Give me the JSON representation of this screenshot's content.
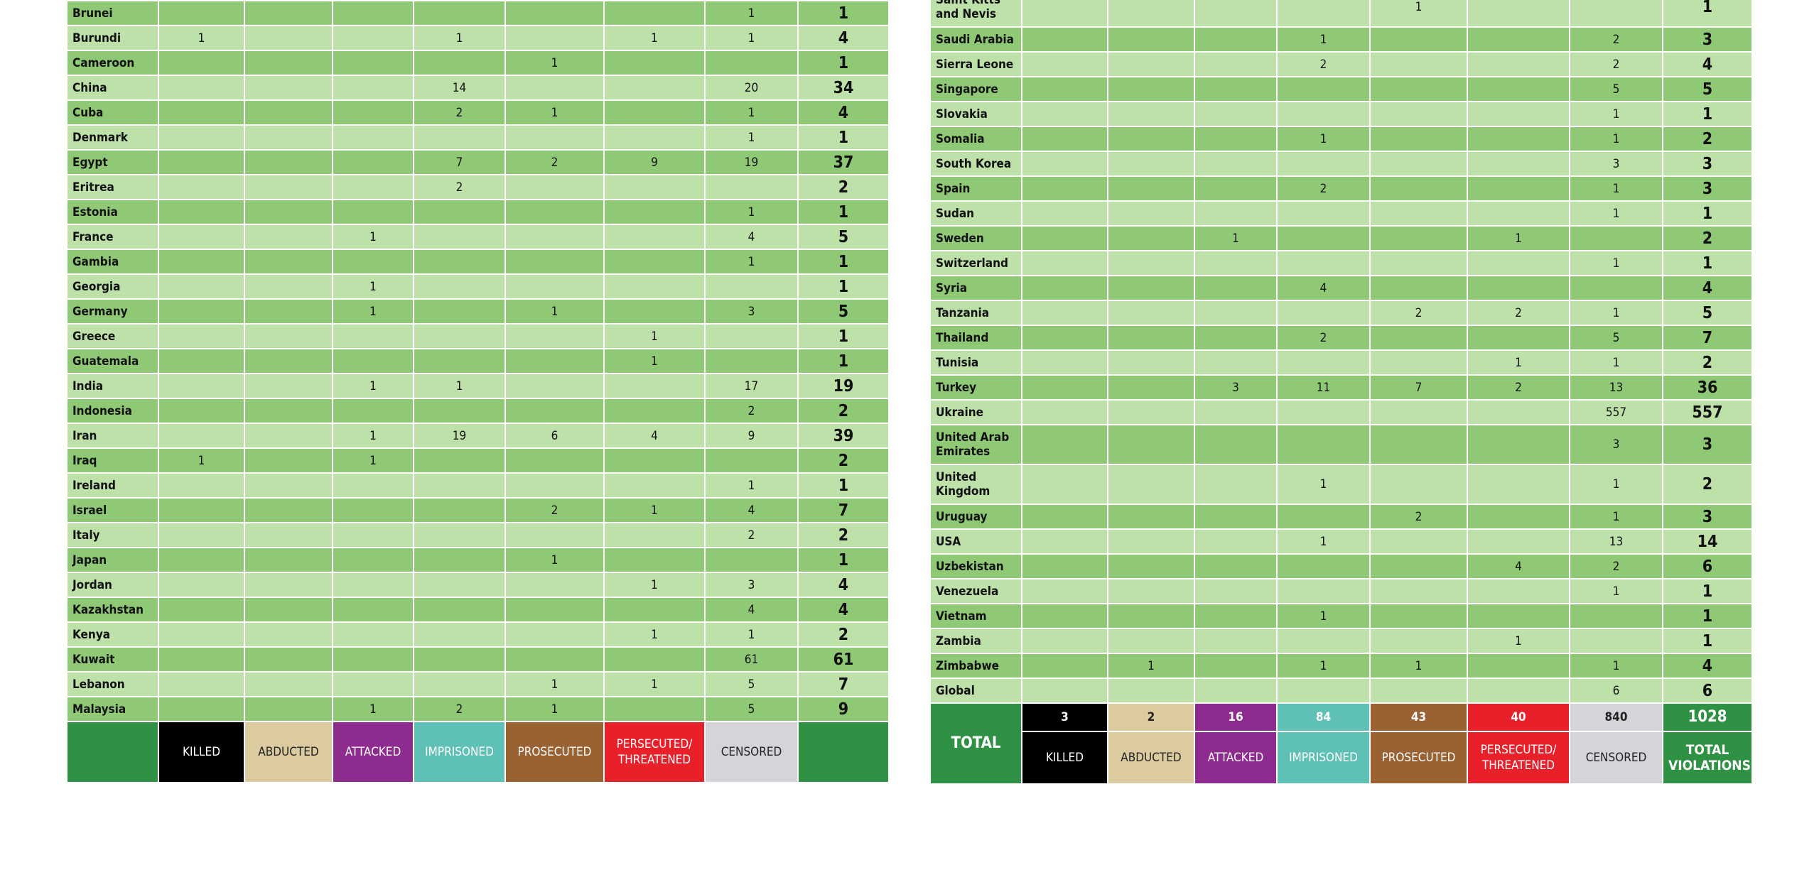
{
  "left": {
    "rows": [
      [
        "Brunei",
        null,
        null,
        null,
        null,
        null,
        null,
        1,
        1
      ],
      [
        "Burundi",
        1,
        null,
        null,
        1,
        null,
        1,
        1,
        4
      ],
      [
        "Cameroon",
        null,
        null,
        null,
        null,
        1,
        null,
        null,
        1
      ],
      [
        "China",
        null,
        null,
        null,
        14,
        null,
        null,
        20,
        34
      ],
      [
        "Cuba",
        null,
        null,
        null,
        2,
        1,
        null,
        1,
        4
      ],
      [
        "Denmark",
        null,
        null,
        null,
        null,
        null,
        null,
        1,
        1
      ],
      [
        "Egypt",
        null,
        null,
        null,
        7,
        2,
        9,
        19,
        37
      ],
      [
        "Eritrea",
        null,
        null,
        null,
        2,
        null,
        null,
        null,
        2
      ],
      [
        "Estonia",
        null,
        null,
        null,
        null,
        null,
        null,
        1,
        1
      ],
      [
        "France",
        null,
        null,
        1,
        null,
        null,
        null,
        4,
        5
      ],
      [
        "Gambia",
        null,
        null,
        null,
        null,
        null,
        null,
        1,
        1
      ],
      [
        "Georgia",
        null,
        null,
        1,
        null,
        null,
        null,
        null,
        1
      ],
      [
        "Germany",
        null,
        null,
        1,
        null,
        1,
        null,
        3,
        5
      ],
      [
        "Greece",
        null,
        null,
        null,
        null,
        null,
        1,
        null,
        1
      ],
      [
        "Guatemala",
        null,
        null,
        null,
        null,
        null,
        1,
        null,
        1
      ],
      [
        "India",
        null,
        null,
        1,
        1,
        null,
        null,
        17,
        19
      ],
      [
        "Indonesia",
        null,
        null,
        null,
        null,
        null,
        null,
        2,
        2
      ],
      [
        "Iran",
        null,
        null,
        1,
        19,
        6,
        4,
        9,
        39
      ],
      [
        "Iraq",
        1,
        null,
        1,
        null,
        null,
        null,
        null,
        2
      ],
      [
        "Ireland",
        null,
        null,
        null,
        null,
        null,
        null,
        1,
        1
      ],
      [
        "Israel",
        null,
        null,
        null,
        null,
        2,
        1,
        4,
        7
      ],
      [
        "Italy",
        null,
        null,
        null,
        null,
        null,
        null,
        2,
        2
      ],
      [
        "Japan",
        null,
        null,
        null,
        null,
        1,
        null,
        null,
        1
      ],
      [
        "Jordan",
        null,
        null,
        null,
        null,
        null,
        1,
        3,
        4
      ],
      [
        "Kazakhstan",
        null,
        null,
        null,
        null,
        null,
        null,
        4,
        4
      ],
      [
        "Kenya",
        null,
        null,
        null,
        null,
        null,
        1,
        1,
        2
      ],
      [
        "Kuwait",
        null,
        null,
        null,
        null,
        null,
        null,
        61,
        61
      ],
      [
        "Lebanon",
        null,
        null,
        null,
        null,
        1,
        1,
        5,
        7
      ],
      [
        "Malaysia",
        null,
        null,
        1,
        2,
        1,
        null,
        5,
        9
      ]
    ],
    "legend": [
      "KILLED",
      "ABDUCTED",
      "ATTACKED",
      "IMPRISONED",
      "PROSECUTED",
      "PERSECUTED/ THREATENED",
      "CENSORED"
    ]
  },
  "right": {
    "rows": [
      [
        "Saint Kitts and Nevis",
        null,
        null,
        null,
        null,
        1,
        null,
        null,
        1
      ],
      [
        "Saudi Arabia",
        null,
        null,
        null,
        1,
        null,
        null,
        2,
        3
      ],
      [
        "Sierra Leone",
        null,
        null,
        null,
        2,
        null,
        null,
        2,
        4
      ],
      [
        "Singapore",
        null,
        null,
        null,
        null,
        null,
        null,
        5,
        5
      ],
      [
        "Slovakia",
        null,
        null,
        null,
        null,
        null,
        null,
        1,
        1
      ],
      [
        "Somalia",
        null,
        null,
        null,
        1,
        null,
        null,
        1,
        2
      ],
      [
        "South Korea",
        null,
        null,
        null,
        null,
        null,
        null,
        3,
        3
      ],
      [
        "Spain",
        null,
        null,
        null,
        2,
        null,
        null,
        1,
        3
      ],
      [
        "Sudan",
        null,
        null,
        null,
        null,
        null,
        null,
        1,
        1
      ],
      [
        "Sweden",
        null,
        null,
        1,
        null,
        null,
        1,
        null,
        2
      ],
      [
        "Switzerland",
        null,
        null,
        null,
        null,
        null,
        null,
        1,
        1
      ],
      [
        "Syria",
        null,
        null,
        null,
        4,
        null,
        null,
        null,
        4
      ],
      [
        "Tanzania",
        null,
        null,
        null,
        null,
        2,
        2,
        1,
        5
      ],
      [
        "Thailand",
        null,
        null,
        null,
        2,
        null,
        null,
        5,
        7
      ],
      [
        "Tunisia",
        null,
        null,
        null,
        null,
        null,
        1,
        1,
        2
      ],
      [
        "Turkey",
        null,
        null,
        3,
        11,
        7,
        2,
        13,
        36
      ],
      [
        "Ukraine",
        null,
        null,
        null,
        null,
        null,
        null,
        557,
        557
      ],
      [
        "United Arab Emirates",
        null,
        null,
        null,
        null,
        null,
        null,
        3,
        3
      ],
      [
        "United Kingdom",
        null,
        null,
        null,
        1,
        null,
        null,
        1,
        2
      ],
      [
        "Uruguay",
        null,
        null,
        null,
        null,
        2,
        null,
        1,
        3
      ],
      [
        "USA",
        null,
        null,
        null,
        1,
        null,
        null,
        13,
        14
      ],
      [
        "Uzbekistan",
        null,
        null,
        null,
        null,
        null,
        4,
        2,
        6
      ],
      [
        "Venezuela",
        null,
        null,
        null,
        null,
        null,
        null,
        1,
        1
      ],
      [
        "Vietnam",
        null,
        null,
        null,
        1,
        null,
        null,
        null,
        1
      ],
      [
        "Zambia",
        null,
        null,
        null,
        null,
        null,
        1,
        null,
        1
      ],
      [
        "Zimbabwe",
        null,
        1,
        null,
        1,
        1,
        null,
        1,
        4
      ],
      [
        "Global",
        null,
        null,
        null,
        null,
        null,
        null,
        6,
        6
      ]
    ],
    "total": {
      "label": "TOTAL",
      "values": [
        3,
        2,
        16,
        84,
        43,
        40,
        840,
        1028
      ]
    },
    "legend": [
      "KILLED",
      "ABDUCTED",
      "ATTACKED",
      "IMPRISONED",
      "PROSECUTED",
      "PERSECUTED/ THREATENED",
      "CENSORED",
      "TOTAL VIOLATIONS"
    ]
  }
}
